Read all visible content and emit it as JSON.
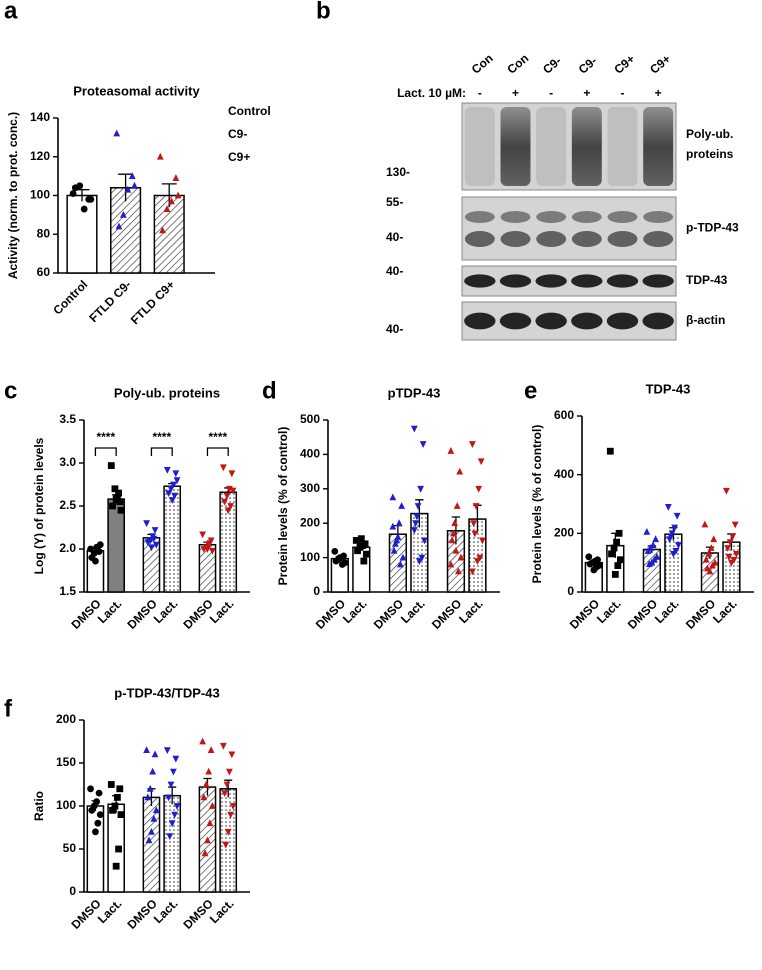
{
  "chart_data": [
    {
      "type": "bar",
      "panel": "a",
      "title": "Proteasomal activity",
      "ylabel": "Activity (norm. to prot. conc.)",
      "categories": [
        "Control",
        "FTLD C9-",
        "FTLD C9+"
      ],
      "values": [
        100,
        104,
        100
      ],
      "errors": [
        3,
        7,
        6
      ],
      "points": [
        [
          101,
          98,
          93,
          105,
          104,
          98
        ],
        [
          132,
          110,
          103,
          90,
          84,
          105
        ],
        [
          120,
          109,
          97,
          93,
          82,
          100
        ]
      ],
      "fills": [
        "white",
        "hatch",
        "hatch"
      ],
      "point_colors": [
        "#000000",
        "#1f1fd0",
        "#c01818"
      ],
      "markers": [
        "circle",
        "triangle-up",
        "triangle-up"
      ],
      "legend": [
        {
          "name": "Control",
          "color": "#000000"
        },
        {
          "name": "C9-",
          "color": "#1f1fd0"
        },
        {
          "name": "C9+",
          "color": "#c01818"
        }
      ],
      "ylim": [
        60,
        140
      ],
      "yticks": [
        60,
        80,
        100,
        120,
        140
      ]
    },
    {
      "type": "bar",
      "panel": "c",
      "title": "Poly-ub. proteins",
      "ylabel": "Log (Y) of protein levels",
      "categories": [
        "DMSO",
        "Lact.",
        "DMSO",
        "Lact.",
        "DMSO",
        "Lact."
      ],
      "values": [
        1.98,
        2.58,
        2.13,
        2.73,
        2.05,
        2.66
      ],
      "errors": [
        0.03,
        0.05,
        0.04,
        0.03,
        0.03,
        0.05
      ],
      "points": [
        [
          2.0,
          1.97,
          2.02,
          1.95,
          1.9,
          2.05,
          1.99,
          1.86
        ],
        [
          2.97,
          2.55,
          2.6,
          2.7,
          2.5,
          2.45,
          2.65,
          2.58
        ],
        [
          2.3,
          2.22,
          2.15,
          2.1,
          2.08,
          2.05,
          2.12,
          2.02
        ],
        [
          2.92,
          2.88,
          2.75,
          2.7,
          2.65,
          2.8,
          2.62,
          2.57
        ],
        [
          2.17,
          2.1,
          2.05,
          2.02,
          2.0,
          1.98,
          2.07,
          2.0
        ],
        [
          2.95,
          2.88,
          2.7,
          2.62,
          2.55,
          2.68,
          2.5,
          2.45
        ]
      ],
      "fills": [
        "white",
        "#808080",
        "hatch",
        "dots",
        "hatch",
        "dots"
      ],
      "point_colors": [
        "#000000",
        "#000000",
        "#1f1fd0",
        "#1f1fd0",
        "#c01818",
        "#c01818"
      ],
      "markers": [
        "circle",
        "square",
        "triangle-down",
        "triangle-down",
        "triangle-down",
        "triangle-down"
      ],
      "annotations": [
        "****",
        "****",
        "****"
      ],
      "ylim": [
        1.5,
        3.5
      ],
      "yticks": [
        1.5,
        {
          "value": 2,
          "label": "2.0"
        },
        2.5,
        {
          "value": 3,
          "label": "3.0"
        },
        3.5
      ]
    },
    {
      "type": "bar",
      "panel": "d",
      "title": "pTDP-43",
      "ylabel": "Protein levels (% of control)",
      "categories": [
        "DMSO",
        "Lact.",
        "DMSO",
        "Lact.",
        "DMSO",
        "Lact."
      ],
      "values": [
        97,
        130,
        168,
        228,
        178,
        212
      ],
      "errors": [
        6,
        10,
        25,
        40,
        40,
        40
      ],
      "points": [
        [
          118,
          105,
          100,
          95,
          90,
          85,
          80,
          100
        ],
        [
          150,
          140,
          135,
          130,
          120,
          110,
          90,
          155
        ],
        [
          275,
          250,
          200,
          150,
          120,
          100,
          80,
          160,
          140,
          190
        ],
        [
          475,
          430,
          300,
          250,
          200,
          150,
          100,
          90,
          220,
          180
        ],
        [
          410,
          350,
          250,
          200,
          150,
          100,
          60,
          120,
          170,
          80
        ],
        [
          430,
          380,
          300,
          250,
          200,
          150,
          100,
          90,
          170,
          60
        ]
      ],
      "fills": [
        "white",
        "white",
        "hatch",
        "dots",
        "hatch",
        "dots"
      ],
      "point_colors": [
        "#000000",
        "#000000",
        "#1f1fd0",
        "#1f1fd0",
        "#c01818",
        "#c01818"
      ],
      "markers": [
        "circle",
        "square",
        "triangle-up",
        "triangle-down",
        "triangle-up",
        "triangle-down"
      ],
      "ylim": [
        0,
        500
      ],
      "yticks": [
        0,
        100,
        200,
        300,
        400,
        500
      ]
    },
    {
      "type": "bar",
      "panel": "e",
      "title": "TDP-43",
      "ylabel": "Protein levels (% of control)",
      "categories": [
        "DMSO",
        "Lact.",
        "DMSO",
        "Lact.",
        "DMSO",
        "Lact."
      ],
      "values": [
        100,
        158,
        145,
        197,
        133,
        170
      ],
      "errors": [
        6,
        42,
        12,
        22,
        20,
        28
      ],
      "points": [
        [
          120,
          110,
          105,
          100,
          95,
          90,
          85,
          75
        ],
        [
          480,
          200,
          170,
          150,
          130,
          110,
          90,
          60
        ],
        [
          205,
          180,
          160,
          150,
          140,
          120,
          110,
          100,
          95
        ],
        [
          290,
          260,
          220,
          200,
          180,
          160,
          140,
          130,
          190
        ],
        [
          230,
          180,
          150,
          130,
          110,
          100,
          90,
          70,
          80
        ],
        [
          345,
          230,
          190,
          170,
          150,
          130,
          110,
          100,
          120
        ]
      ],
      "fills": [
        "white",
        "white",
        "hatch",
        "dots",
        "hatch",
        "dots"
      ],
      "point_colors": [
        "#000000",
        "#000000",
        "#1f1fd0",
        "#1f1fd0",
        "#c01818",
        "#c01818"
      ],
      "markers": [
        "circle",
        "square",
        "triangle-up",
        "triangle-down",
        "triangle-up",
        "triangle-down"
      ],
      "ylim": [
        0,
        600
      ],
      "yticks": [
        0,
        200,
        400,
        600
      ]
    },
    {
      "type": "bar",
      "panel": "f",
      "title": "p-TDP-43/TDP-43",
      "ylabel": "Ratio",
      "categories": [
        "DMSO",
        "Lact.",
        "DMSO",
        "Lact.",
        "DMSO",
        "Lact."
      ],
      "values": [
        100,
        102,
        110,
        112,
        122,
        120
      ],
      "errors": [
        6,
        10,
        10,
        10,
        10,
        10
      ],
      "points": [
        [
          120,
          115,
          105,
          100,
          95,
          90,
          80,
          70
        ],
        [
          125,
          120,
          110,
          100,
          95,
          90,
          50,
          30
        ],
        [
          165,
          160,
          140,
          120,
          110,
          95,
          85,
          70,
          60
        ],
        [
          165,
          155,
          140,
          125,
          110,
          100,
          90,
          80,
          65
        ],
        [
          175,
          165,
          140,
          125,
          110,
          100,
          80,
          60,
          45
        ],
        [
          170,
          160,
          140,
          125,
          115,
          100,
          90,
          70,
          55
        ]
      ],
      "fills": [
        "white",
        "white",
        "hatch",
        "dots",
        "hatch",
        "dots"
      ],
      "point_colors": [
        "#000000",
        "#000000",
        "#1f1fd0",
        "#1f1fd0",
        "#c01818",
        "#c01818"
      ],
      "markers": [
        "circle",
        "square",
        "triangle-up",
        "triangle-down",
        "triangle-up",
        "triangle-down"
      ],
      "ylim": [
        0,
        200
      ],
      "yticks": [
        0,
        50,
        100,
        150,
        200
      ]
    }
  ],
  "blot": {
    "panel": "b",
    "lanes": [
      "Con",
      "Con",
      "C9-",
      "C9-",
      "C9+",
      "C9+"
    ],
    "treatment_label": "Lact. 10 µM:",
    "treatment": [
      "-",
      "+",
      "-",
      "+",
      "-",
      "+"
    ],
    "bands": [
      [
        "Poly-ub.",
        "proteins"
      ],
      [
        "p-TDP-43"
      ],
      [
        "TDP-43"
      ],
      [
        "β-actin"
      ]
    ],
    "size_markers": [
      "130-",
      "55-",
      "40-",
      "40-",
      "40-"
    ]
  }
}
